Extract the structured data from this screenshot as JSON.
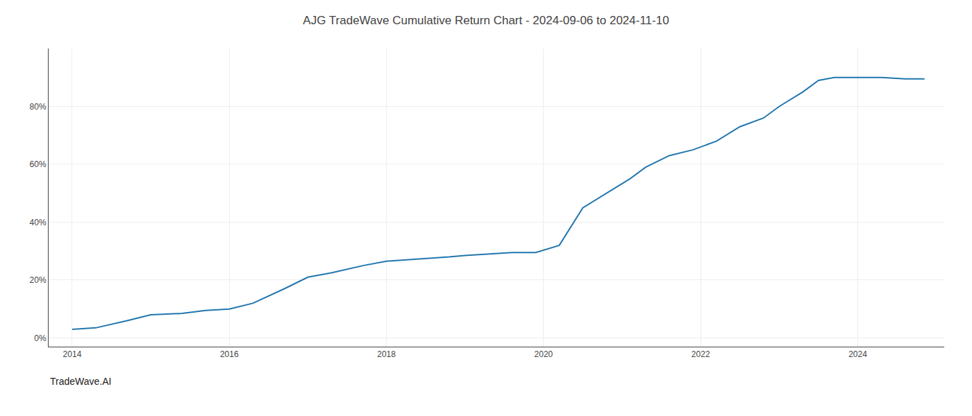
{
  "chart_data": {
    "type": "line",
    "title": "AJG TradeWave Cumulative Return Chart - 2024-09-06 to 2024-11-10",
    "annotations": [
      "TradeWave.AI"
    ],
    "x": [
      2014.0,
      2014.3,
      2014.7,
      2015.0,
      2015.4,
      2015.7,
      2016.0,
      2016.3,
      2016.7,
      2017.0,
      2017.3,
      2017.7,
      2018.0,
      2018.3,
      2018.5,
      2018.8,
      2019.0,
      2019.3,
      2019.6,
      2019.9,
      2020.2,
      2020.5,
      2020.8,
      2021.1,
      2021.3,
      2021.6,
      2021.9,
      2022.2,
      2022.5,
      2022.8,
      2023.0,
      2023.3,
      2023.5,
      2023.7,
      2024.0,
      2024.3,
      2024.6,
      2024.85
    ],
    "values": [
      3.0,
      3.5,
      6.0,
      8.0,
      8.5,
      9.5,
      10.0,
      12.0,
      17.0,
      21.0,
      22.5,
      25.0,
      26.5,
      27.0,
      27.5,
      28.0,
      28.5,
      29.0,
      29.5,
      29.5,
      32.0,
      45.0,
      50.0,
      55.0,
      59.0,
      63.0,
      65.0,
      68.0,
      73.0,
      76.0,
      80.0,
      85.0,
      89.0,
      90.0,
      90.0,
      90.0,
      89.5,
      89.5
    ],
    "color": "#2176ae",
    "xlim": [
      2013.7,
      2025.1
    ],
    "xticks": [
      2014,
      2016,
      2018,
      2020,
      2022,
      2024
    ],
    "ylim": [
      -3,
      100
    ],
    "yticks": [
      {
        "value": 0,
        "label": "0%"
      },
      {
        "value": 20,
        "label": "20%"
      },
      {
        "value": 40,
        "label": "40%"
      },
      {
        "value": 60,
        "label": "60%"
      },
      {
        "value": 80,
        "label": "80%"
      }
    ],
    "grid": true
  }
}
